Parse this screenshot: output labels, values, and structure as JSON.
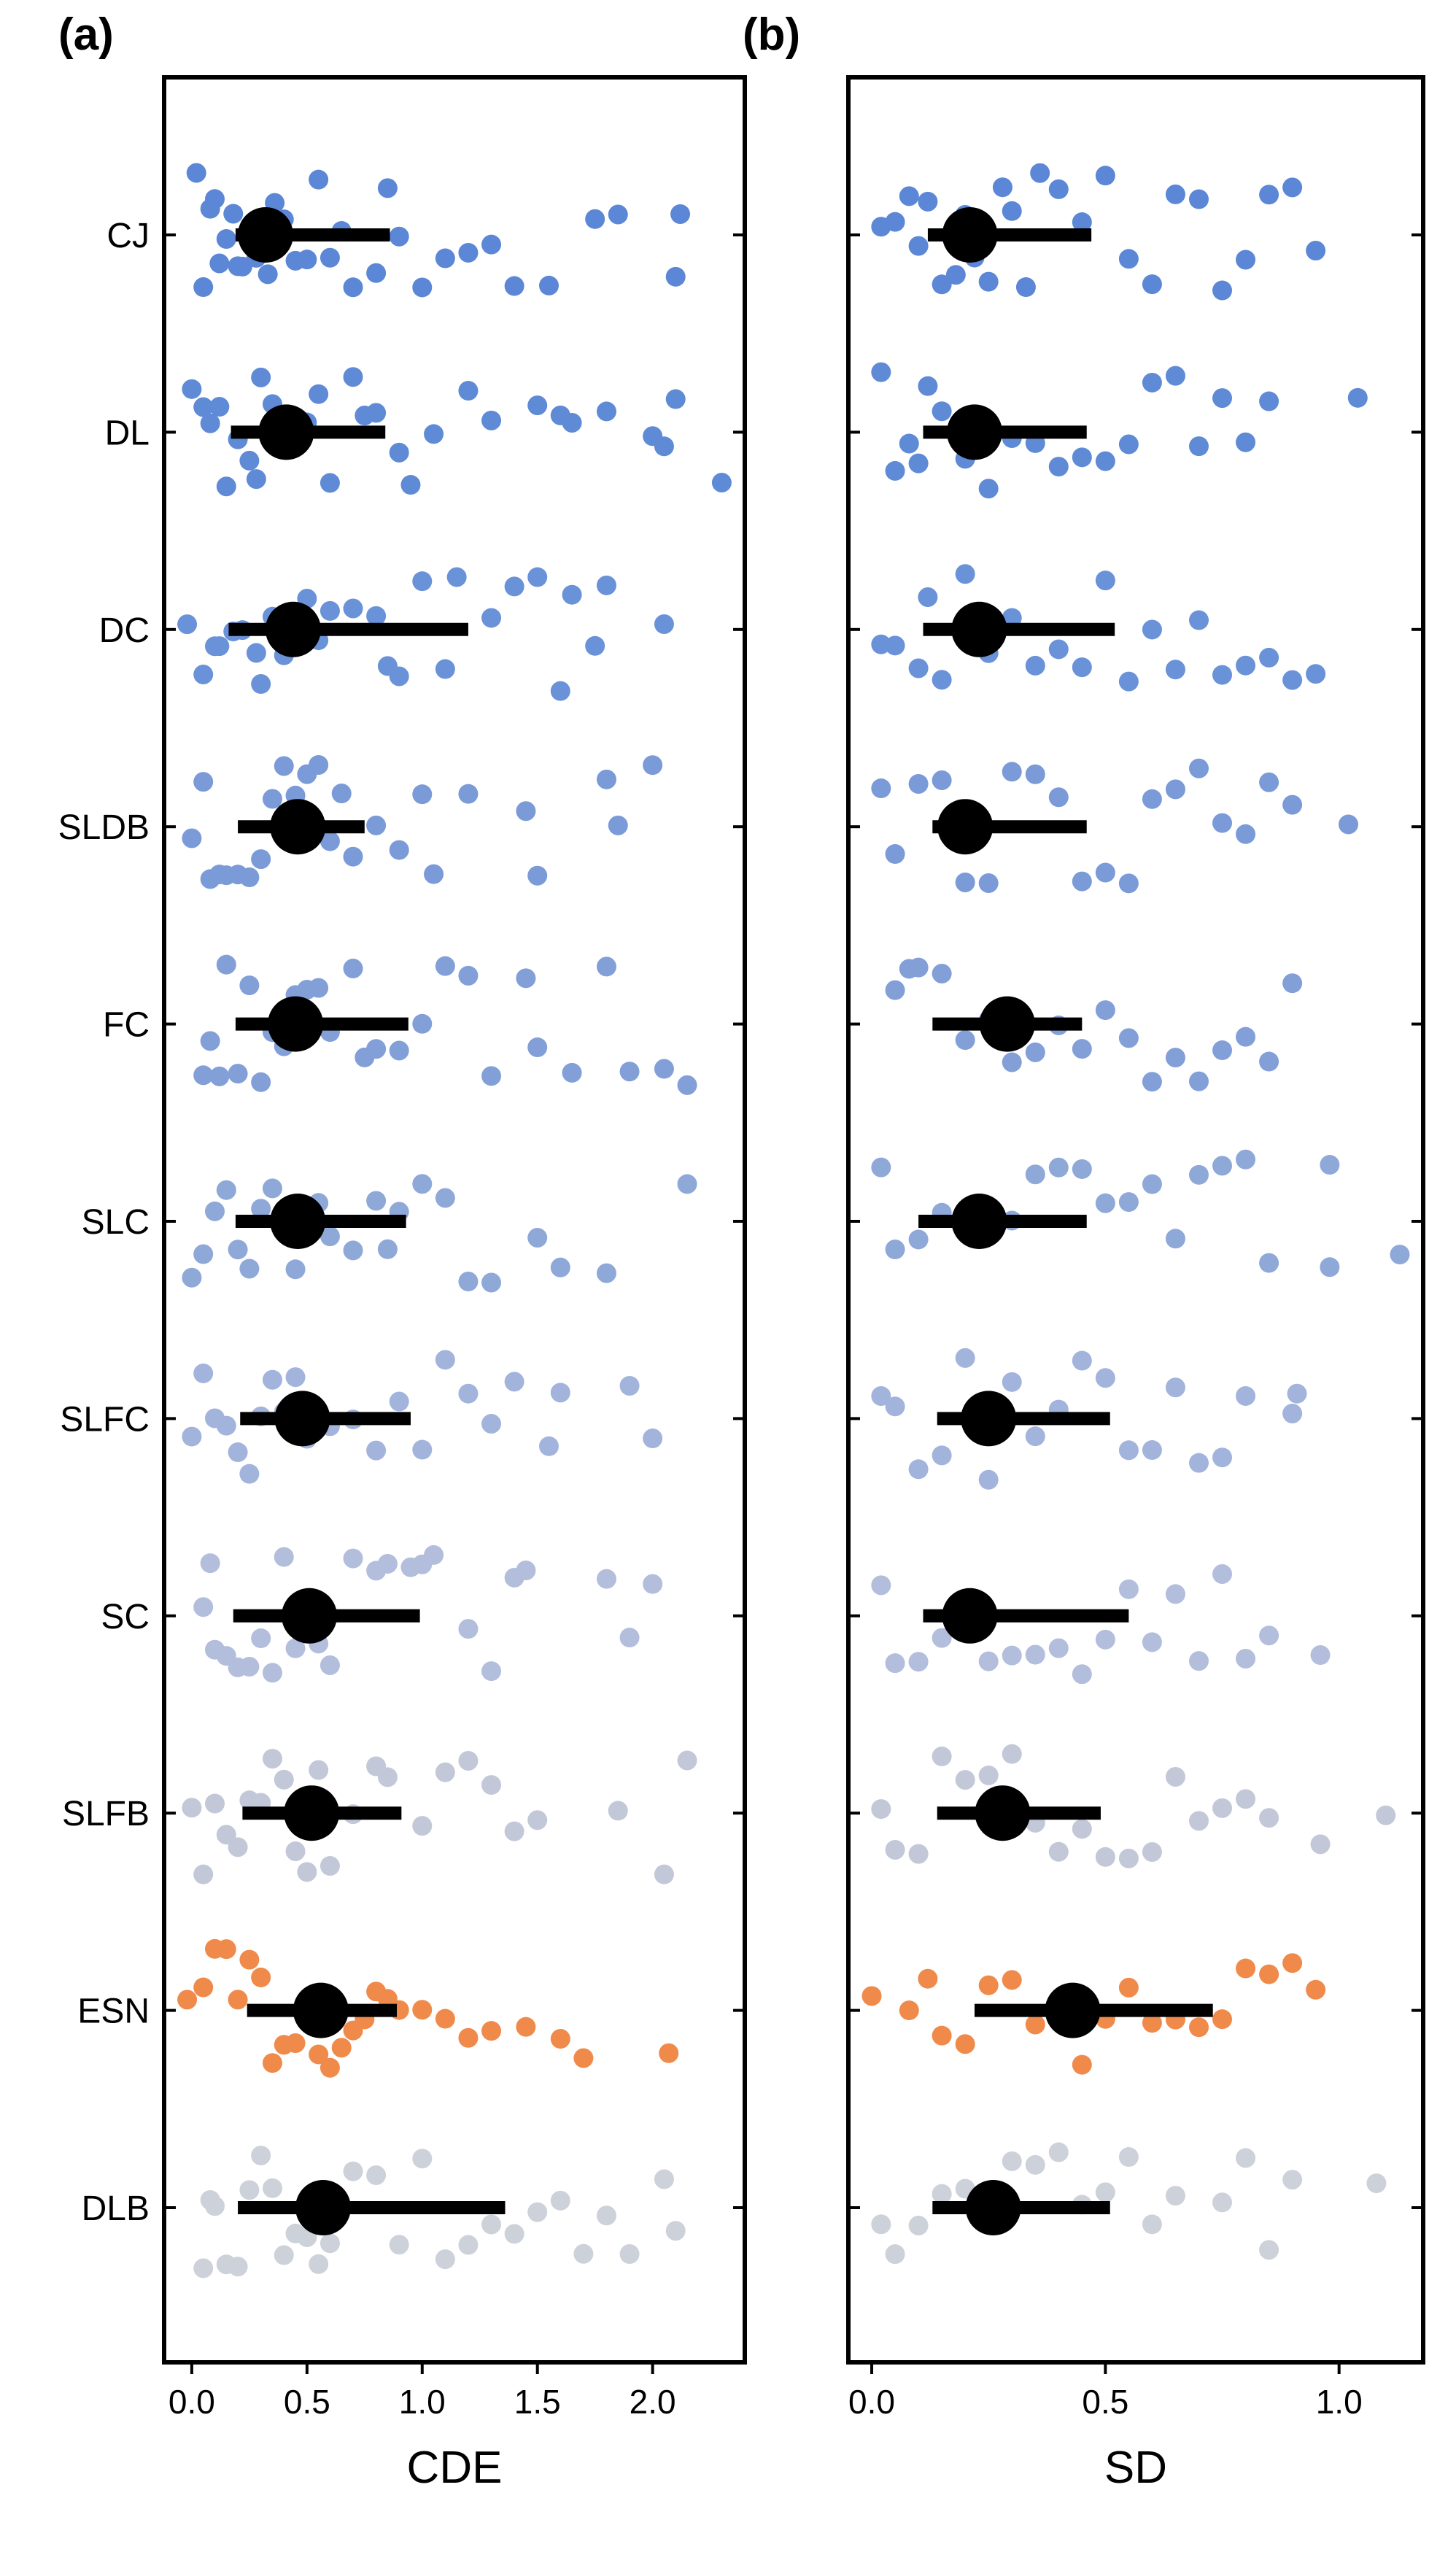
{
  "chart_data": [
    {
      "panel_label": "(a)",
      "type": "scatter",
      "xlabel": "CDE",
      "xlim": [
        -0.12,
        2.4
      ],
      "xticks": [
        "0.0",
        "0.5",
        "1.0",
        "1.5",
        "2.0"
      ],
      "xtick_values": [
        0,
        0.5,
        1,
        1.5,
        2
      ],
      "categories": [
        "CJ",
        "DL",
        "DC",
        "SLDB",
        "FC",
        "SLC",
        "SLFC",
        "SC",
        "SLFB",
        "ESN",
        "DLB"
      ],
      "summary": [
        {
          "median": 0.32,
          "low": 0.19,
          "high": 0.86
        },
        {
          "median": 0.41,
          "low": 0.17,
          "high": 0.84
        },
        {
          "median": 0.44,
          "low": 0.16,
          "high": 1.2
        },
        {
          "median": 0.46,
          "low": 0.2,
          "high": 0.75
        },
        {
          "median": 0.45,
          "low": 0.19,
          "high": 0.94
        },
        {
          "median": 0.46,
          "low": 0.19,
          "high": 0.93
        },
        {
          "median": 0.48,
          "low": 0.21,
          "high": 0.95
        },
        {
          "median": 0.51,
          "low": 0.18,
          "high": 0.99
        },
        {
          "median": 0.52,
          "low": 0.22,
          "high": 0.91
        },
        {
          "median": 0.56,
          "low": 0.24,
          "high": 0.89
        },
        {
          "median": 0.57,
          "low": 0.2,
          "high": 1.36
        }
      ],
      "points": [
        [
          0.02,
          0.05,
          0.08,
          0.1,
          0.12,
          0.15,
          0.18,
          0.2,
          0.22,
          0.25,
          0.28,
          0.3,
          0.33,
          0.36,
          0.4,
          0.45,
          0.5,
          0.55,
          0.6,
          0.65,
          0.7,
          0.8,
          0.85,
          0.9,
          1.0,
          1.1,
          1.2,
          1.3,
          1.4,
          1.55,
          1.75,
          1.85,
          2.1,
          2.12
        ],
        [
          0.0,
          0.05,
          0.08,
          0.12,
          0.15,
          0.2,
          0.25,
          0.28,
          0.3,
          0.35,
          0.4,
          0.45,
          0.5,
          0.55,
          0.6,
          0.7,
          0.75,
          0.8,
          0.9,
          0.95,
          1.05,
          1.2,
          1.3,
          1.5,
          1.6,
          1.65,
          1.8,
          2.0,
          2.05,
          2.1,
          2.3
        ],
        [
          -0.02,
          0.05,
          0.1,
          0.12,
          0.18,
          0.22,
          0.28,
          0.3,
          0.35,
          0.4,
          0.5,
          0.55,
          0.6,
          0.7,
          0.8,
          0.85,
          0.9,
          1.0,
          1.1,
          1.15,
          1.3,
          1.4,
          1.5,
          1.6,
          1.65,
          1.75,
          1.8,
          2.05
        ],
        [
          0.0,
          0.05,
          0.08,
          0.12,
          0.15,
          0.2,
          0.25,
          0.3,
          0.35,
          0.4,
          0.45,
          0.5,
          0.55,
          0.6,
          0.65,
          0.7,
          0.8,
          0.9,
          1.0,
          1.05,
          1.2,
          1.45,
          1.5,
          1.8,
          1.85,
          2.0
        ],
        [
          0.05,
          0.08,
          0.12,
          0.15,
          0.2,
          0.25,
          0.3,
          0.35,
          0.4,
          0.45,
          0.5,
          0.55,
          0.6,
          0.7,
          0.75,
          0.8,
          0.9,
          1.0,
          1.1,
          1.2,
          1.3,
          1.45,
          1.5,
          1.65,
          1.8,
          1.9,
          2.05,
          2.15
        ],
        [
          0.0,
          0.05,
          0.1,
          0.15,
          0.2,
          0.25,
          0.3,
          0.35,
          0.4,
          0.45,
          0.5,
          0.55,
          0.6,
          0.7,
          0.8,
          0.85,
          0.9,
          1.0,
          1.1,
          1.2,
          1.3,
          1.5,
          1.6,
          1.8,
          2.15
        ],
        [
          0.0,
          0.05,
          0.1,
          0.15,
          0.2,
          0.25,
          0.3,
          0.35,
          0.4,
          0.45,
          0.5,
          0.55,
          0.6,
          0.7,
          0.8,
          0.9,
          1.0,
          1.1,
          1.2,
          1.3,
          1.4,
          1.55,
          1.6,
          1.9,
          2.0
        ],
        [
          0.05,
          0.08,
          0.1,
          0.15,
          0.2,
          0.25,
          0.3,
          0.35,
          0.4,
          0.45,
          0.5,
          0.55,
          0.6,
          0.7,
          0.8,
          0.85,
          0.95,
          1.0,
          1.05,
          1.2,
          1.3,
          1.4,
          1.45,
          1.8,
          1.9,
          2.0
        ],
        [
          0.0,
          0.05,
          0.1,
          0.15,
          0.2,
          0.25,
          0.3,
          0.35,
          0.4,
          0.45,
          0.5,
          0.55,
          0.6,
          0.7,
          0.8,
          0.85,
          1.0,
          1.1,
          1.2,
          1.3,
          1.4,
          1.5,
          1.85,
          2.05,
          2.15
        ],
        [
          -0.02,
          0.05,
          0.1,
          0.15,
          0.2,
          0.25,
          0.3,
          0.35,
          0.4,
          0.45,
          0.5,
          0.55,
          0.6,
          0.65,
          0.7,
          0.75,
          0.8,
          0.85,
          0.9,
          1.0,
          1.1,
          1.2,
          1.3,
          1.45,
          1.6,
          1.7,
          2.07
        ],
        [
          0.05,
          0.08,
          0.1,
          0.15,
          0.2,
          0.25,
          0.3,
          0.35,
          0.4,
          0.45,
          0.5,
          0.55,
          0.6,
          0.7,
          0.8,
          0.9,
          1.0,
          1.1,
          1.2,
          1.3,
          1.4,
          1.5,
          1.6,
          1.7,
          1.8,
          1.9,
          2.05,
          2.1
        ]
      ]
    },
    {
      "panel_label": "(b)",
      "type": "scatter",
      "xlabel": "SD",
      "xlim": [
        -0.05,
        1.18
      ],
      "xticks": [
        "0.0",
        "0.5",
        "1.0"
      ],
      "xtick_values": [
        0,
        0.5,
        1
      ],
      "categories": [
        "CJ",
        "DL",
        "DC",
        "SLDB",
        "FC",
        "SLC",
        "SLFC",
        "SC",
        "SLFB",
        "ESN",
        "DLB"
      ],
      "summary": [
        {
          "median": 0.21,
          "low": 0.12,
          "high": 0.47
        },
        {
          "median": 0.22,
          "low": 0.11,
          "high": 0.46
        },
        {
          "median": 0.23,
          "low": 0.11,
          "high": 0.52
        },
        {
          "median": 0.2,
          "low": 0.13,
          "high": 0.46
        },
        {
          "median": 0.29,
          "low": 0.13,
          "high": 0.45
        },
        {
          "median": 0.23,
          "low": 0.1,
          "high": 0.46
        },
        {
          "median": 0.25,
          "low": 0.14,
          "high": 0.51
        },
        {
          "median": 0.21,
          "low": 0.11,
          "high": 0.55
        },
        {
          "median": 0.28,
          "low": 0.14,
          "high": 0.49
        },
        {
          "median": 0.43,
          "low": 0.22,
          "high": 0.73
        },
        {
          "median": 0.26,
          "low": 0.13,
          "high": 0.51
        }
      ],
      "points": [
        [
          0.02,
          0.05,
          0.08,
          0.1,
          0.12,
          0.15,
          0.18,
          0.2,
          0.22,
          0.25,
          0.28,
          0.3,
          0.33,
          0.36,
          0.4,
          0.45,
          0.5,
          0.55,
          0.6,
          0.65,
          0.7,
          0.75,
          0.8,
          0.85,
          0.9,
          0.95
        ],
        [
          0.02,
          0.05,
          0.08,
          0.1,
          0.12,
          0.15,
          0.2,
          0.25,
          0.3,
          0.35,
          0.4,
          0.45,
          0.5,
          0.55,
          0.6,
          0.65,
          0.7,
          0.75,
          0.8,
          0.85,
          1.04
        ],
        [
          0.02,
          0.05,
          0.1,
          0.12,
          0.15,
          0.2,
          0.25,
          0.3,
          0.35,
          0.4,
          0.45,
          0.5,
          0.55,
          0.6,
          0.65,
          0.7,
          0.75,
          0.8,
          0.85,
          0.9,
          0.95
        ],
        [
          0.02,
          0.05,
          0.1,
          0.15,
          0.2,
          0.25,
          0.3,
          0.35,
          0.4,
          0.45,
          0.5,
          0.55,
          0.6,
          0.65,
          0.7,
          0.75,
          0.8,
          0.85,
          0.9,
          1.02
        ],
        [
          0.05,
          0.08,
          0.1,
          0.15,
          0.2,
          0.25,
          0.3,
          0.35,
          0.4,
          0.45,
          0.5,
          0.55,
          0.6,
          0.65,
          0.7,
          0.75,
          0.8,
          0.85,
          0.9
        ],
        [
          0.02,
          0.05,
          0.1,
          0.15,
          0.2,
          0.25,
          0.3,
          0.35,
          0.4,
          0.45,
          0.5,
          0.55,
          0.6,
          0.65,
          0.7,
          0.75,
          0.8,
          0.85,
          0.98,
          0.98,
          1.13
        ],
        [
          0.02,
          0.05,
          0.1,
          0.15,
          0.2,
          0.25,
          0.3,
          0.35,
          0.4,
          0.45,
          0.5,
          0.55,
          0.6,
          0.65,
          0.7,
          0.75,
          0.8,
          0.9,
          0.91
        ],
        [
          0.02,
          0.05,
          0.1,
          0.15,
          0.2,
          0.25,
          0.3,
          0.35,
          0.4,
          0.45,
          0.5,
          0.55,
          0.6,
          0.65,
          0.7,
          0.75,
          0.8,
          0.85,
          0.96
        ],
        [
          0.02,
          0.05,
          0.1,
          0.15,
          0.2,
          0.25,
          0.3,
          0.35,
          0.4,
          0.45,
          0.5,
          0.55,
          0.6,
          0.65,
          0.7,
          0.75,
          0.8,
          0.85,
          0.96,
          1.1
        ],
        [
          0.0,
          0.08,
          0.12,
          0.15,
          0.2,
          0.25,
          0.3,
          0.35,
          0.4,
          0.45,
          0.5,
          0.55,
          0.6,
          0.65,
          0.7,
          0.75,
          0.8,
          0.85,
          0.9,
          0.95
        ],
        [
          0.02,
          0.05,
          0.1,
          0.15,
          0.2,
          0.25,
          0.3,
          0.35,
          0.4,
          0.45,
          0.5,
          0.55,
          0.6,
          0.65,
          0.75,
          0.8,
          0.85,
          0.9,
          1.08
        ]
      ]
    }
  ],
  "colors": [
    "#5b87d6",
    "#5f8ad6",
    "#6a92d8",
    "#7a9ad8",
    "#829fd8",
    "#8ea8d8",
    "#a2b4dc",
    "#b2bedc",
    "#c2c8d8",
    "#f08a4b",
    "#cdd1d9"
  ],
  "median_color": "#000000"
}
